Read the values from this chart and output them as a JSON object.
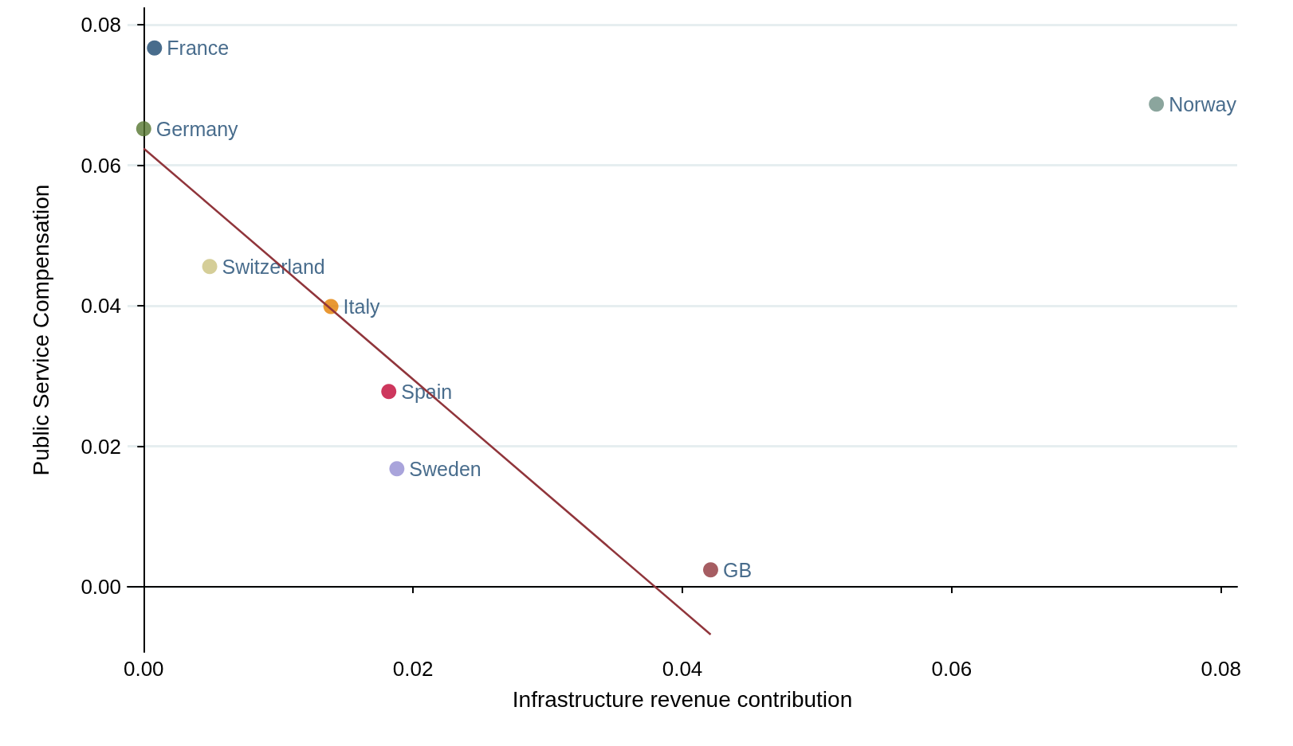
{
  "chart_data": {
    "type": "scatter",
    "xlabel": "Infrastructure revenue contribution",
    "ylabel": "Public Service Compensation",
    "xlim": [
      -0.0012,
      0.0812
    ],
    "ylim": [
      -0.0093,
      0.0824
    ],
    "xticks": [
      {
        "value": 0,
        "label": "0.00"
      },
      {
        "value": 0.02,
        "label": "0.02"
      },
      {
        "value": 0.04,
        "label": "0.04"
      },
      {
        "value": 0.06,
        "label": "0.06"
      },
      {
        "value": 0.08,
        "label": "0.08"
      }
    ],
    "yticks": [
      {
        "value": 0,
        "label": "0.00"
      },
      {
        "value": 0.02,
        "label": "0.02"
      },
      {
        "value": 0.04,
        "label": "0.04"
      },
      {
        "value": 0.06,
        "label": "0.06"
      },
      {
        "value": 0.08,
        "label": "0.08"
      }
    ],
    "grid": "y",
    "legend": false,
    "marker": "circle",
    "series": [
      {
        "name": "France",
        "color": "#1a476f",
        "x": [
          0.0008
        ],
        "values": [
          0.0767
        ]
      },
      {
        "name": "Germany",
        "color": "#55752f",
        "x": [
          0.0
        ],
        "values": [
          0.0652
        ]
      },
      {
        "name": "Norway",
        "color": "#6e8e84",
        "x": [
          0.0752
        ],
        "values": [
          0.0687
        ]
      },
      {
        "name": "Switzerland",
        "color": "#cac27e",
        "x": [
          0.0049
        ],
        "values": [
          0.0456
        ]
      },
      {
        "name": "Italy",
        "color": "#e37e00",
        "x": [
          0.0139
        ],
        "values": [
          0.0399
        ]
      },
      {
        "name": "Spain",
        "color": "#c10534",
        "x": [
          0.0182
        ],
        "values": [
          0.0278
        ]
      },
      {
        "name": "Sweden",
        "color": "#938dd2",
        "x": [
          0.0188
        ],
        "values": [
          0.0168
        ]
      },
      {
        "name": "GB",
        "color": "#90353b",
        "x": [
          0.0421
        ],
        "values": [
          0.0024
        ]
      },
      {
        "type": "line",
        "color": "#90353b",
        "marker": "none",
        "line_style": "solid",
        "x": [
          0.0,
          0.0421
        ],
        "values": [
          0.0624,
          -0.0068
        ]
      }
    ]
  }
}
